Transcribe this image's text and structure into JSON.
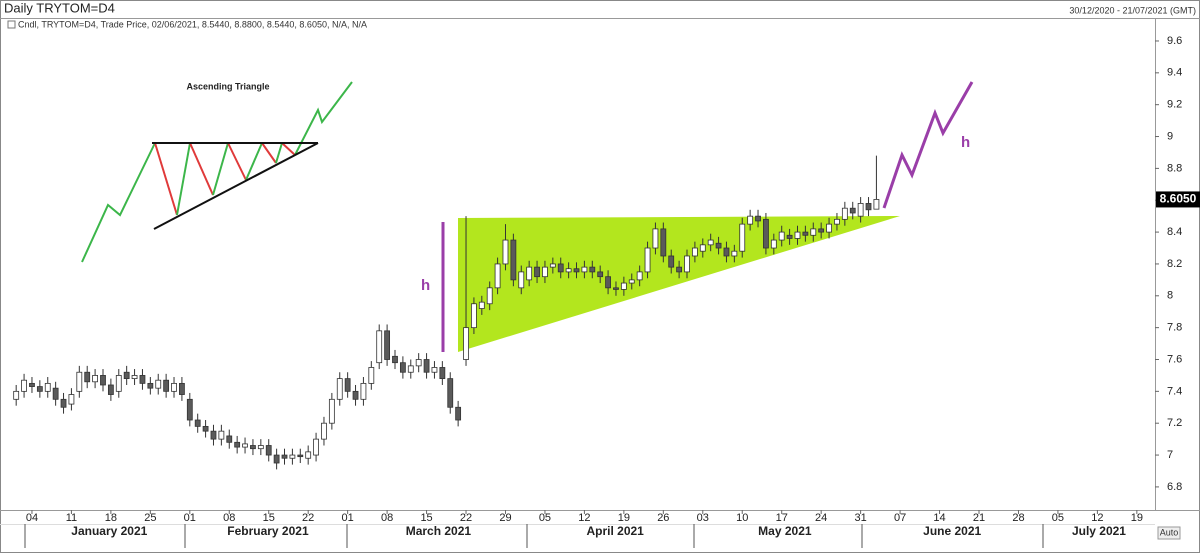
{
  "chart_data": {
    "type": "candlestick",
    "title": "Daily TRYTOM=D4",
    "date_range": "30/12/2020 - 21/07/2021 (GMT)",
    "legend_text": "Cndl, TRYTOM=D4, Trade Price, 02/06/2021, 8.5440, 8.8800, 8.5440, 8.6050, N/A, N/A",
    "annotations": [
      "Ascending Triangle",
      "h",
      "h"
    ],
    "auto_button": "Auto",
    "up_color": "#ffffff",
    "down_color": "#5a5a5a",
    "xlim": [
      -2.05,
      144.3
    ],
    "ylim": [
      6.655,
      9.738
    ],
    "yticks": [
      6.8,
      7,
      7.2,
      7.4,
      7.6,
      7.8,
      8,
      8.2,
      8.4,
      8.6,
      8.8,
      9,
      9.2,
      9.4,
      9.6
    ],
    "xticks": [
      {
        "value": 2,
        "label": "04"
      },
      {
        "value": 7,
        "label": "11"
      },
      {
        "value": 12,
        "label": "18"
      },
      {
        "value": 17,
        "label": "25"
      },
      {
        "value": 22,
        "label": "01"
      },
      {
        "value": 27,
        "label": "08"
      },
      {
        "value": 32,
        "label": "15"
      },
      {
        "value": 37,
        "label": "22"
      },
      {
        "value": 42,
        "label": "01"
      },
      {
        "value": 47,
        "label": "08"
      },
      {
        "value": 52,
        "label": "15"
      },
      {
        "value": 57,
        "label": "22"
      },
      {
        "value": 62,
        "label": "29"
      },
      {
        "value": 67,
        "label": "05"
      },
      {
        "value": 72,
        "label": "12"
      },
      {
        "value": 77,
        "label": "19"
      },
      {
        "value": 82,
        "label": "26"
      },
      {
        "value": 87,
        "label": "03"
      },
      {
        "value": 92,
        "label": "10"
      },
      {
        "value": 97,
        "label": "17"
      },
      {
        "value": 102,
        "label": "24"
      },
      {
        "value": 107,
        "label": "31"
      },
      {
        "value": 112,
        "label": "07"
      },
      {
        "value": 117,
        "label": "14"
      },
      {
        "value": 122,
        "label": "21"
      },
      {
        "value": 127,
        "label": "28"
      },
      {
        "value": 132,
        "label": "05"
      },
      {
        "value": 137,
        "label": "12"
      },
      {
        "value": 142,
        "label": "19"
      }
    ],
    "month_labels": [
      {
        "value": 11.8,
        "label": "January 2021"
      },
      {
        "value": 31.9,
        "label": "February 2021"
      },
      {
        "value": 53.5,
        "label": "March 2021"
      },
      {
        "value": 75.9,
        "label": "April 2021"
      },
      {
        "value": 97.4,
        "label": "May 2021"
      },
      {
        "value": 118.6,
        "label": "June 2021"
      },
      {
        "value": 137.2,
        "label": "July 2021"
      }
    ],
    "last_price": {
      "value": 8.605,
      "label": "8.6050"
    },
    "x": [
      0,
      1,
      2,
      3,
      4,
      5,
      6,
      7,
      8,
      9,
      10,
      11,
      12,
      13,
      14,
      15,
      16,
      17,
      18,
      19,
      20,
      21,
      22,
      23,
      24,
      25,
      26,
      27,
      28,
      29,
      30,
      31,
      32,
      33,
      34,
      35,
      36,
      37,
      38,
      39,
      40,
      41,
      42,
      43,
      44,
      45,
      46,
      47,
      48,
      49,
      50,
      51,
      52,
      53,
      54,
      55,
      56,
      57,
      58,
      59,
      60,
      61,
      62,
      63,
      64,
      65,
      66,
      67,
      68,
      69,
      70,
      71,
      72,
      73,
      74,
      75,
      76,
      77,
      78,
      79,
      80,
      81,
      82,
      83,
      84,
      85,
      86,
      87,
      88,
      89,
      90,
      91,
      92,
      93,
      94,
      95,
      96,
      97,
      98,
      99,
      100,
      101,
      102,
      103,
      104,
      105,
      106,
      107,
      108,
      109
    ],
    "open": [
      7.35,
      7.4,
      7.45,
      7.43,
      7.4,
      7.42,
      7.35,
      7.32,
      7.4,
      7.52,
      7.46,
      7.5,
      7.44,
      7.4,
      7.52,
      7.48,
      7.5,
      7.45,
      7.42,
      7.47,
      7.4,
      7.45,
      7.35,
      7.22,
      7.18,
      7.15,
      7.1,
      7.12,
      7.08,
      7.05,
      7.06,
      7.04,
      7.06,
      7.0,
      7.0,
      6.98,
      7.0,
      6.98,
      7.0,
      7.1,
      7.2,
      7.35,
      7.48,
      7.4,
      7.35,
      7.45,
      7.58,
      7.78,
      7.62,
      7.58,
      7.52,
      7.56,
      7.6,
      7.52,
      7.55,
      7.48,
      7.3,
      7.6,
      7.8,
      7.92,
      7.95,
      8.05,
      8.2,
      8.35,
      8.05,
      8.1,
      8.18,
      8.12,
      8.18,
      8.2,
      8.15,
      8.17,
      8.15,
      8.18,
      8.15,
      8.12,
      8.05,
      8.04,
      8.08,
      8.1,
      8.15,
      8.3,
      8.42,
      8.25,
      8.18,
      8.15,
      8.25,
      8.28,
      8.32,
      8.33,
      8.3,
      8.25,
      8.28,
      8.45,
      8.5,
      8.48,
      8.3,
      8.35,
      8.38,
      8.36,
      8.4,
      8.38,
      8.42,
      8.4,
      8.45,
      8.48,
      8.55,
      8.5,
      8.58,
      8.544
    ],
    "high": [
      7.44,
      7.51,
      7.49,
      7.47,
      7.49,
      7.46,
      7.39,
      7.42,
      7.56,
      7.56,
      7.54,
      7.54,
      7.48,
      7.54,
      7.56,
      7.54,
      7.54,
      7.49,
      7.51,
      7.51,
      7.49,
      7.49,
      7.39,
      7.26,
      7.22,
      7.19,
      7.19,
      7.16,
      7.12,
      7.11,
      7.1,
      7.1,
      7.1,
      7.04,
      7.04,
      7.04,
      7.04,
      7.06,
      7.14,
      7.24,
      7.39,
      7.52,
      7.52,
      7.44,
      7.49,
      7.59,
      7.82,
      7.82,
      7.66,
      7.62,
      7.6,
      7.64,
      7.64,
      7.59,
      7.59,
      7.52,
      7.34,
      8.5,
      7.99,
      8.0,
      8.09,
      8.24,
      8.45,
      8.39,
      8.19,
      8.22,
      8.22,
      8.22,
      8.24,
      8.24,
      8.21,
      8.21,
      8.22,
      8.22,
      8.19,
      8.16,
      8.09,
      8.12,
      8.14,
      8.19,
      8.34,
      8.46,
      8.46,
      8.29,
      8.22,
      8.29,
      8.34,
      8.36,
      8.39,
      8.37,
      8.34,
      8.32,
      8.49,
      8.54,
      8.54,
      8.52,
      8.39,
      8.44,
      8.42,
      8.44,
      8.44,
      8.46,
      8.46,
      8.49,
      8.52,
      8.59,
      8.59,
      8.62,
      8.62,
      8.88
    ],
    "low": [
      7.31,
      7.36,
      7.39,
      7.36,
      7.36,
      7.31,
      7.26,
      7.28,
      7.36,
      7.42,
      7.42,
      7.4,
      7.34,
      7.36,
      7.44,
      7.44,
      7.41,
      7.38,
      7.38,
      7.36,
      7.36,
      7.34,
      7.18,
      7.14,
      7.11,
      7.06,
      7.06,
      7.04,
      7.01,
      7.01,
      7.0,
      7.0,
      6.96,
      6.91,
      6.94,
      6.94,
      6.95,
      6.94,
      6.96,
      7.06,
      7.16,
      7.31,
      7.36,
      7.31,
      7.31,
      7.41,
      7.54,
      7.56,
      7.54,
      7.48,
      7.48,
      7.52,
      7.48,
      7.48,
      7.44,
      7.26,
      7.18,
      7.56,
      7.76,
      7.88,
      7.91,
      8.01,
      8.16,
      8.06,
      8.01,
      8.06,
      8.08,
      8.08,
      8.14,
      8.11,
      8.11,
      8.11,
      8.11,
      8.11,
      8.08,
      8.01,
      8.0,
      8.0,
      8.04,
      8.06,
      8.11,
      8.26,
      8.21,
      8.14,
      8.11,
      8.11,
      8.21,
      8.24,
      8.28,
      8.26,
      8.21,
      8.21,
      8.24,
      8.41,
      8.43,
      8.26,
      8.26,
      8.31,
      8.32,
      8.32,
      8.34,
      8.34,
      8.36,
      8.36,
      8.41,
      8.44,
      8.48,
      8.46,
      8.5,
      8.544
    ],
    "close": [
      7.4,
      7.47,
      7.43,
      7.4,
      7.45,
      7.35,
      7.3,
      7.38,
      7.52,
      7.46,
      7.5,
      7.44,
      7.38,
      7.5,
      7.48,
      7.5,
      7.45,
      7.42,
      7.47,
      7.4,
      7.45,
      7.38,
      7.22,
      7.18,
      7.15,
      7.1,
      7.15,
      7.08,
      7.05,
      7.07,
      7.04,
      7.06,
      7.0,
      6.95,
      6.98,
      7.0,
      6.99,
      7.02,
      7.1,
      7.2,
      7.35,
      7.48,
      7.4,
      7.35,
      7.45,
      7.55,
      7.78,
      7.6,
      7.58,
      7.52,
      7.56,
      7.6,
      7.52,
      7.55,
      7.48,
      7.3,
      7.22,
      7.8,
      7.95,
      7.96,
      8.05,
      8.2,
      8.35,
      8.1,
      8.15,
      8.18,
      8.12,
      8.18,
      8.2,
      8.15,
      8.17,
      8.15,
      8.18,
      8.15,
      8.12,
      8.05,
      8.04,
      8.08,
      8.1,
      8.15,
      8.3,
      8.42,
      8.25,
      8.18,
      8.15,
      8.25,
      8.3,
      8.32,
      8.35,
      8.3,
      8.25,
      8.28,
      8.45,
      8.5,
      8.47,
      8.3,
      8.35,
      8.4,
      8.36,
      8.4,
      8.38,
      8.42,
      8.4,
      8.45,
      8.48,
      8.55,
      8.52,
      8.58,
      8.54,
      8.605
    ]
  }
}
